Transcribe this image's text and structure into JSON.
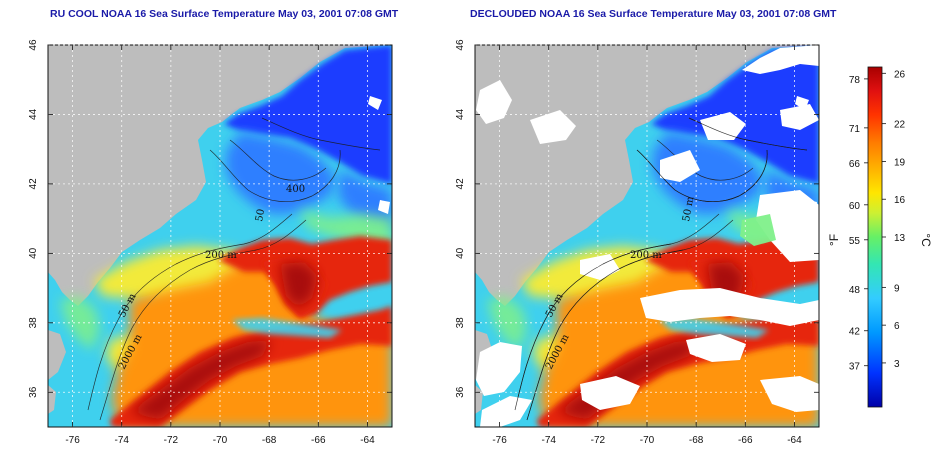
{
  "panels": [
    {
      "id": "raw",
      "title": "RU COOL NOAA 16 Sea Surface Temperature May 03, 2001 07:08 GMT",
      "clouded": false
    },
    {
      "id": "declouded",
      "title": "DECLOUDED NOAA 16 Sea Surface Temperature May 03, 2001 07:08 GMT",
      "clouded": true
    }
  ],
  "map_axes": {
    "lon_range": [
      -77,
      -63
    ],
    "lat_range": [
      35,
      46
    ],
    "lon_ticks": [
      "-76",
      "-74",
      "-72",
      "-70",
      "-68",
      "-66",
      "-64"
    ],
    "lat_ticks": [
      "36",
      "38",
      "40",
      "42",
      "44",
      "46"
    ]
  },
  "contour_labels": {
    "left": [
      "400",
      "50",
      "200 m",
      "50 m",
      "2000 m"
    ],
    "right": [
      "50 m",
      "200 m",
      "50 m",
      "2000 m"
    ]
  },
  "colorbar": {
    "fahrenheit_ticks": [
      "78",
      "71",
      "66",
      "60",
      "55",
      "48",
      "42",
      "37"
    ],
    "celsius_ticks": [
      "26",
      "22",
      "19",
      "16",
      "13",
      "9",
      "6",
      "3"
    ],
    "f_unit": "°F",
    "c_unit": "°C",
    "colors": [
      "#0000a8",
      "#0033ff",
      "#0099ff",
      "#33ccff",
      "#33e6b3",
      "#66f066",
      "#ccf033",
      "#ffe600",
      "#ffb300",
      "#ff7a00",
      "#ff3300",
      "#e01010",
      "#a80000"
    ]
  },
  "colors": {
    "land": "#bdbdbd",
    "cloud": "#ffffff",
    "title": "#1a1aa8",
    "deep_blue": "#1a3cff",
    "mid_blue": "#2f7fff",
    "cyan": "#3fd0ee",
    "green": "#7ff08a",
    "yellow": "#f2ea3a",
    "orange": "#ff9410",
    "red": "#e6280f",
    "dark_red": "#a8110b"
  }
}
